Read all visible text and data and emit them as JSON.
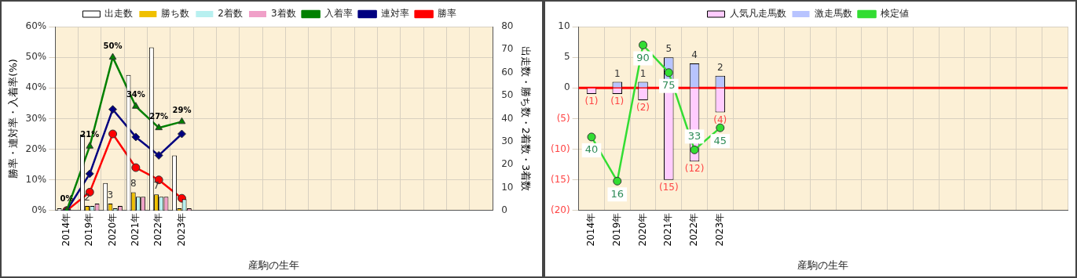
{
  "chart_data": [
    {
      "type": "bar",
      "categories": [
        "2014年",
        "2019年",
        "2020年",
        "2021年",
        "2022年",
        "2023年",
        null,
        null,
        null,
        null,
        null,
        null,
        null,
        null,
        null,
        null,
        null,
        null,
        null
      ],
      "xlabel": "産駒の生年",
      "ylabel": "勝率・連対率・入着率(%)",
      "y2label": "出走数・勝ち数・2着数・3着数",
      "ylim": [
        0,
        60
      ],
      "yticks": [
        {
          "value": 0,
          "label": "0%"
        },
        {
          "value": 10,
          "label": "10%"
        },
        {
          "value": 20,
          "label": "20%"
        },
        {
          "value": 30,
          "label": "30%"
        },
        {
          "value": 40,
          "label": "40%"
        },
        {
          "value": 50,
          "label": "50%"
        },
        {
          "value": 60,
          "label": "60%"
        }
      ],
      "y2lim": [
        0,
        80
      ],
      "y2ticks": [
        0,
        10,
        20,
        30,
        40,
        50,
        60,
        70,
        80
      ],
      "grid": true,
      "legend": "top",
      "series": [
        {
          "name": "出走数",
          "color": "#ffffff",
          "axis": "y2",
          "values": [
            1,
            33,
            12,
            59,
            71,
            24,
            null,
            null,
            null,
            null,
            null,
            null,
            null,
            null,
            null,
            null,
            null,
            null,
            null
          ]
        },
        {
          "name": "勝ち数",
          "color": "#f0c000",
          "axis": "y2",
          "values": [
            0,
            2,
            3,
            8,
            7,
            1,
            null,
            null,
            null,
            null,
            null,
            null,
            null,
            null,
            null,
            null,
            null,
            null,
            null
          ],
          "value_labels": [
            null,
            "2",
            "3",
            "8",
            "7",
            null,
            null,
            null,
            null,
            null,
            null,
            null,
            null,
            null,
            null,
            null,
            null,
            null,
            null
          ]
        },
        {
          "name": "2着数",
          "color": "#b8f0f0",
          "axis": "y2",
          "values": [
            0,
            2,
            1,
            6,
            6,
            5,
            null,
            null,
            null,
            null,
            null,
            null,
            null,
            null,
            null,
            null,
            null,
            null,
            null
          ]
        },
        {
          "name": "3着数",
          "color": "#f0a0c8",
          "axis": "y2",
          "values": [
            0,
            3,
            2,
            6,
            6,
            1,
            null,
            null,
            null,
            null,
            null,
            null,
            null,
            null,
            null,
            null,
            null,
            null,
            null
          ]
        },
        {
          "name": "入着率",
          "type": "line",
          "marker": "triangle",
          "color": "#008000",
          "values": [
            0,
            21,
            50,
            34,
            27,
            29,
            null,
            null,
            null,
            null,
            null,
            null,
            null,
            null,
            null,
            null,
            null,
            null,
            null
          ],
          "value_labels": [
            "0%",
            "21%",
            "50%",
            "34%",
            "27%",
            "29%",
            null,
            null,
            null,
            null,
            null,
            null,
            null,
            null,
            null,
            null,
            null,
            null,
            null
          ]
        },
        {
          "name": "連対率",
          "type": "line",
          "marker": "diamond",
          "color": "#000080",
          "values": [
            0,
            12,
            33,
            24,
            18,
            25,
            null,
            null,
            null,
            null,
            null,
            null,
            null,
            null,
            null,
            null,
            null,
            null,
            null
          ]
        },
        {
          "name": "勝率",
          "type": "line",
          "marker": "circle",
          "color": "#ff0000",
          "values": [
            0,
            6,
            25,
            14,
            10,
            4,
            null,
            null,
            null,
            null,
            null,
            null,
            null,
            null,
            null,
            null,
            null,
            null,
            null
          ]
        }
      ]
    },
    {
      "type": "bar",
      "stacked": true,
      "categories": [
        "2014年",
        "2019年",
        "2020年",
        "2021年",
        "2022年",
        "2023年",
        null,
        null,
        null,
        null,
        null,
        null,
        null,
        null,
        null,
        null,
        null,
        null,
        null
      ],
      "xlabel": "産駒の生年",
      "ylim": [
        -20,
        10
      ],
      "yticks": [
        10,
        5,
        0,
        {
          "value": -5,
          "label": "(5)"
        },
        {
          "value": -10,
          "label": "(10)"
        },
        {
          "value": -15,
          "label": "(15)"
        },
        {
          "value": -20,
          "label": "(20)"
        }
      ],
      "y2lim": [
        0,
        100
      ],
      "grid": true,
      "legend": "top",
      "ref_lines": [
        {
          "axis": "y",
          "value": 0,
          "color": "#ff0000"
        }
      ],
      "series": [
        {
          "name": "人気凡走馬数",
          "color": "#ffccff",
          "values": [
            -1,
            -1,
            -2,
            -15,
            -12,
            -4,
            null,
            null,
            null,
            null,
            null,
            null,
            null,
            null,
            null,
            null,
            null,
            null,
            null
          ],
          "value_labels": [
            "(1)",
            "(1)",
            "(2)",
            "(15)",
            "(12)",
            "(4)",
            null,
            null,
            null,
            null,
            null,
            null,
            null,
            null,
            null,
            null,
            null,
            null,
            null
          ]
        },
        {
          "name": "激走馬数",
          "color": "#b8c4ff",
          "values": [
            0,
            1,
            1,
            5,
            4,
            2,
            null,
            null,
            null,
            null,
            null,
            null,
            null,
            null,
            null,
            null,
            null,
            null,
            null
          ],
          "value_labels": [
            null,
            "1",
            "1",
            "5",
            "4",
            "2",
            null,
            null,
            null,
            null,
            null,
            null,
            null,
            null,
            null,
            null,
            null,
            null,
            null
          ]
        },
        {
          "name": "検定値",
          "type": "line",
          "marker": "circle",
          "color": "#33dd33",
          "axis": "y2",
          "values": [
            40,
            16,
            90,
            75,
            33,
            45,
            null,
            null,
            null,
            null,
            null,
            null,
            null,
            null,
            null,
            null,
            null,
            null,
            null
          ],
          "value_labels": [
            "40",
            "16",
            "90",
            "75",
            "33",
            "45",
            null,
            null,
            null,
            null,
            null,
            null,
            null,
            null,
            null,
            null,
            null,
            null,
            null
          ]
        }
      ]
    }
  ]
}
